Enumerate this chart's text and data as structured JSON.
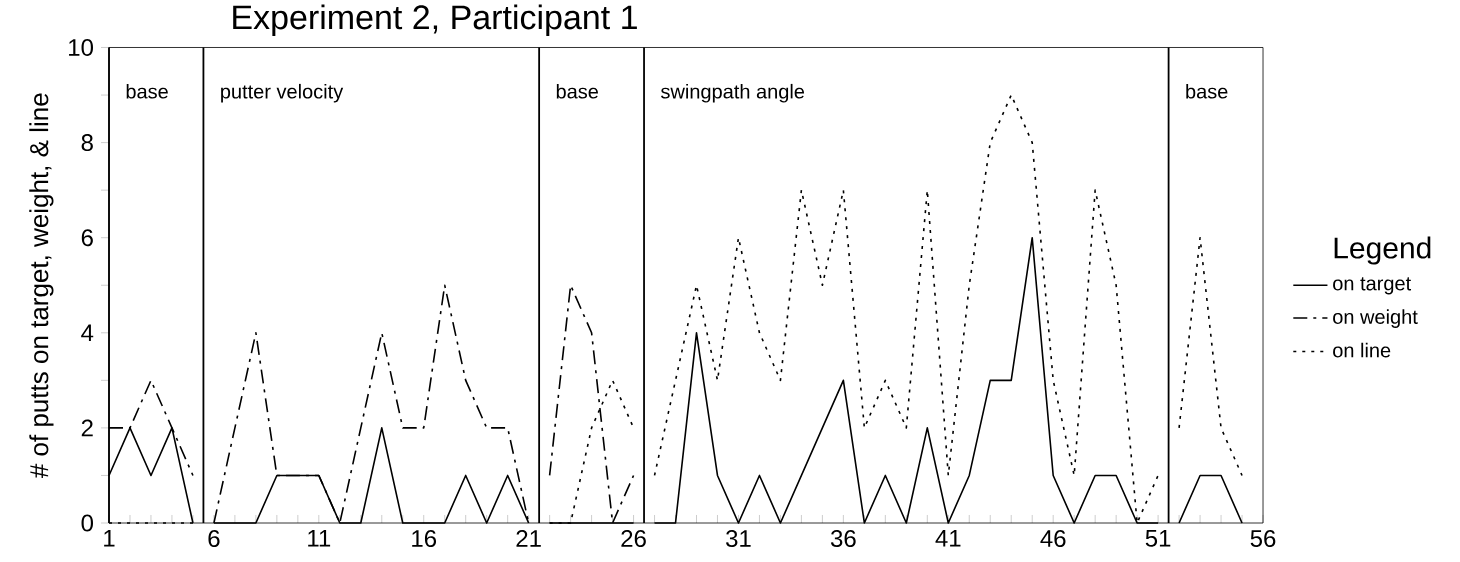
{
  "chart_data": {
    "type": "line",
    "title": "Experiment 2,  Participant 1",
    "ylabel": "# of putts on target, weight, & line",
    "legend_title": "Legend",
    "legend": "right",
    "x": [
      1,
      2,
      3,
      4,
      5,
      5.5,
      6,
      7,
      8,
      9,
      10,
      11,
      12,
      13,
      14,
      15,
      16,
      17,
      18,
      19,
      20,
      21,
      21.5,
      22,
      23,
      24,
      25,
      26,
      26.5,
      27,
      28,
      29,
      30,
      31,
      32,
      33,
      34,
      35,
      36,
      37,
      38,
      39,
      40,
      41,
      42,
      43,
      44,
      45,
      46,
      47,
      48,
      49,
      50,
      51,
      51.5,
      52,
      53,
      54,
      55
    ],
    "series": [
      {
        "name": "on target",
        "color": "#000000",
        "line_style": "solid",
        "values": [
          1,
          2,
          1,
          2,
          0,
          null,
          0,
          0,
          0,
          1,
          1,
          1,
          0,
          0,
          2,
          0,
          0,
          0,
          1,
          0,
          1,
          0,
          null,
          0,
          0,
          0,
          0,
          0,
          null,
          0,
          0,
          4,
          1,
          0,
          1,
          0,
          1,
          2,
          3,
          0,
          1,
          0,
          2,
          0,
          1,
          3,
          3,
          6,
          1,
          0,
          1,
          1,
          0,
          0,
          null,
          0,
          1,
          1,
          0
        ]
      },
      {
        "name": "on weight",
        "color": "#000000",
        "line_style": "dashed",
        "values": [
          2,
          2,
          3,
          2,
          1,
          null,
          0,
          2,
          4,
          1,
          1,
          1,
          0,
          2,
          4,
          2,
          2,
          5,
          3,
          2,
          2,
          0,
          null,
          1,
          5,
          4,
          0,
          1,
          null,
          null,
          null,
          null,
          null,
          null,
          null,
          null,
          null,
          null,
          null,
          null,
          null,
          null,
          null,
          null,
          null,
          null,
          null,
          null,
          null,
          null,
          null,
          null,
          null,
          null,
          null,
          null,
          null,
          null,
          null
        ]
      },
      {
        "name": "on line",
        "color": "#000000",
        "line_style": "dotted",
        "values": [
          0,
          0,
          0,
          0,
          0,
          null,
          null,
          null,
          null,
          null,
          null,
          null,
          null,
          null,
          null,
          null,
          null,
          null,
          null,
          null,
          null,
          null,
          null,
          0,
          0,
          2,
          3,
          2,
          null,
          1,
          3,
          5,
          3,
          6,
          4,
          3,
          7,
          5,
          7,
          2,
          3,
          2,
          7,
          1,
          5,
          8,
          9,
          8,
          3,
          1,
          7,
          5,
          0,
          1,
          null,
          2,
          6,
          2,
          1
        ]
      }
    ],
    "ref_lines": [
      {
        "axis": "x",
        "value": 1,
        "label": "base"
      },
      {
        "axis": "x",
        "value": 5.5,
        "label": "putter velocity"
      },
      {
        "axis": "x",
        "value": 21.5,
        "label": "base"
      },
      {
        "axis": "x",
        "value": 26.5,
        "label": "swingpath angle"
      },
      {
        "axis": "x",
        "value": 51.5,
        "label": "base"
      }
    ],
    "xlim": [
      1,
      56
    ],
    "ylim": [
      0,
      10
    ],
    "xticks": [
      1,
      {
        "value": 2,
        "label": null
      },
      {
        "value": 3,
        "label": null
      },
      {
        "value": 4,
        "label": null
      },
      {
        "value": 5,
        "label": null
      },
      6,
      {
        "value": 7,
        "label": null
      },
      {
        "value": 8,
        "label": null
      },
      {
        "value": 9,
        "label": null
      },
      {
        "value": 10,
        "label": null
      },
      11,
      {
        "value": 12,
        "label": null
      },
      {
        "value": 13,
        "label": null
      },
      {
        "value": 14,
        "label": null
      },
      {
        "value": 15,
        "label": null
      },
      16,
      {
        "value": 17,
        "label": null
      },
      {
        "value": 18,
        "label": null
      },
      {
        "value": 19,
        "label": null
      },
      {
        "value": 20,
        "label": null
      },
      21,
      {
        "value": 22,
        "label": null
      },
      {
        "value": 23,
        "label": null
      },
      {
        "value": 24,
        "label": null
      },
      {
        "value": 25,
        "label": null
      },
      26,
      {
        "value": 27,
        "label": null
      },
      {
        "value": 28,
        "label": null
      },
      {
        "value": 29,
        "label": null
      },
      {
        "value": 30,
        "label": null
      },
      31,
      {
        "value": 32,
        "label": null
      },
      {
        "value": 33,
        "label": null
      },
      {
        "value": 34,
        "label": null
      },
      {
        "value": 35,
        "label": null
      },
      36,
      {
        "value": 37,
        "label": null
      },
      {
        "value": 38,
        "label": null
      },
      {
        "value": 39,
        "label": null
      },
      {
        "value": 40,
        "label": null
      },
      41,
      {
        "value": 42,
        "label": null
      },
      {
        "value": 43,
        "label": null
      },
      {
        "value": 44,
        "label": null
      },
      {
        "value": 45,
        "label": null
      },
      46,
      {
        "value": 47,
        "label": null
      },
      {
        "value": 48,
        "label": null
      },
      {
        "value": 49,
        "label": null
      },
      {
        "value": 50,
        "label": null
      },
      51,
      {
        "value": 52,
        "label": null
      },
      {
        "value": 53,
        "label": null
      },
      {
        "value": 54,
        "label": null
      },
      {
        "value": 55,
        "label": null
      },
      56
    ],
    "yticks": [
      0,
      {
        "value": 1,
        "label": null
      },
      2,
      {
        "value": 3,
        "label": null
      },
      4,
      {
        "value": 5,
        "label": null
      },
      6,
      {
        "value": 7,
        "label": null
      },
      8,
      {
        "value": 9,
        "label": null
      },
      10
    ]
  }
}
